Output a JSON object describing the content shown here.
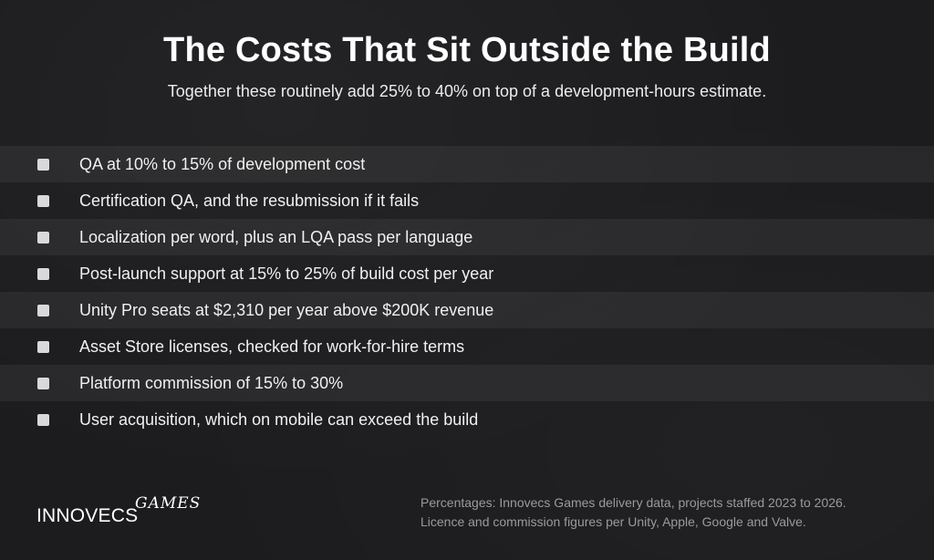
{
  "header": {
    "title": "The Costs That Sit Outside the Build",
    "subtitle": "Together these routinely add 25% to 40% on top of a development-hours estimate."
  },
  "items": [
    {
      "label": "QA at 10% to 15% of development cost"
    },
    {
      "label": "Certification QA, and the resubmission if it fails"
    },
    {
      "label": "Localization per word, plus an LQA pass per language"
    },
    {
      "label": "Post-launch support at 15% to 25% of build cost per year"
    },
    {
      "label": "Unity Pro seats at $2,310 per year above $200K revenue"
    },
    {
      "label": "Asset Store licenses, checked for work-for-hire terms"
    },
    {
      "label": "Platform commission of 15% to 30%"
    },
    {
      "label": "User acquisition, which on mobile can exceed the build"
    }
  ],
  "footer": {
    "logo_word": "INNOVECS",
    "logo_script": "GAMES",
    "source_line_1": "Percentages: Innovecs Games delivery data, projects staffed 2023 to 2026.",
    "source_line_2": "Licence and commission figures per Unity, Apple, Google and Valve."
  },
  "colors": {
    "background": "#1c1c1e",
    "row_shade": "#262628",
    "text": "#f0f0f0",
    "checkbox": "#d9d9d9",
    "footnote": "#9a9a9a"
  }
}
